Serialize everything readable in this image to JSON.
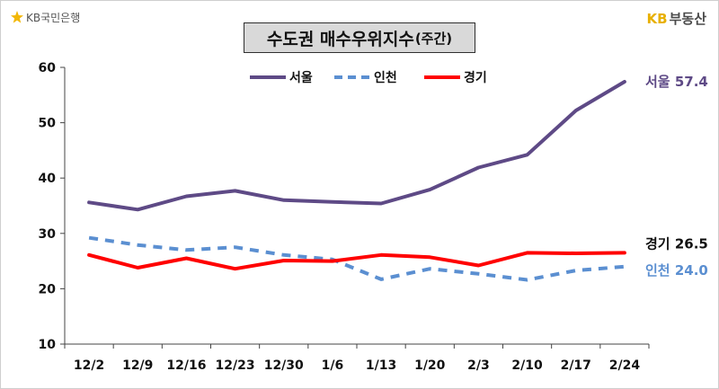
{
  "header": {
    "brand_left": "KB국민은행",
    "brand_right_kb": "KB",
    "brand_right_name": "부동산",
    "title_main": "수도권 매수우위지수",
    "title_sub": "(주간)"
  },
  "colors": {
    "seoul": "#5e4a86",
    "incheon": "#5b8fd1",
    "gyeonggi": "#ff0000",
    "brand_yellow": "#e8b000"
  },
  "chart_data": {
    "type": "line",
    "title": "수도권 매수우위지수(주간)",
    "categories": [
      "12/2",
      "12/9",
      "12/16",
      "12/23",
      "12/30",
      "1/6",
      "1/13",
      "1/20",
      "2/3",
      "2/10",
      "2/17",
      "2/24"
    ],
    "ylim": [
      10,
      60
    ],
    "yticks": [
      10,
      20,
      30,
      40,
      50,
      60
    ],
    "xlabel": "",
    "ylabel": "",
    "legend_position": "top",
    "series": [
      {
        "name": "서울",
        "style": "solid",
        "values": [
          35.6,
          34.3,
          36.7,
          37.7,
          36.0,
          35.7,
          35.4,
          37.9,
          41.9,
          44.2,
          52.2,
          57.4
        ],
        "end_label": "서울 57.4"
      },
      {
        "name": "인천",
        "style": "dashed",
        "values": [
          29.2,
          27.9,
          27.0,
          27.5,
          26.1,
          25.3,
          21.7,
          23.6,
          22.7,
          21.6,
          23.3,
          24.0
        ],
        "end_label": "인천 24.0"
      },
      {
        "name": "경기",
        "style": "solid",
        "values": [
          26.1,
          23.8,
          25.5,
          23.6,
          25.1,
          25.0,
          26.1,
          25.7,
          24.2,
          26.5,
          26.4,
          26.5
        ],
        "end_label": "경기 26.5"
      }
    ]
  }
}
